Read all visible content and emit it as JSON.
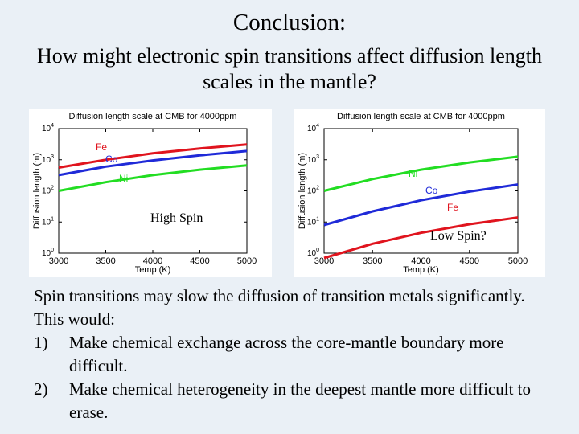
{
  "slide": {
    "title": "Conclusion:",
    "subtitle": "How might electronic spin transitions affect diffusion length scales in the mantle?",
    "overlay_left": "High Spin",
    "overlay_right": "Low Spin?",
    "intro": "Spin transitions may slow the diffusion of transition metals significantly.  This would:",
    "points": [
      {
        "num": "1)",
        "text": "Make chemical exchange across the core-mantle boundary more difficult."
      },
      {
        "num": "2)",
        "text": "Make chemical heterogeneity in the deepest mantle more difficult to erase."
      }
    ]
  },
  "chart_data": [
    {
      "type": "line",
      "title": "Diffusion length scale at CMB for 4000ppm",
      "xlabel": "Temp (K)",
      "ylabel": "Diffusion length (m)",
      "xlim": [
        3000,
        5000
      ],
      "ylim_log10": [
        0,
        4
      ],
      "yscale": "log",
      "xticks": [
        "3000",
        "3500",
        "4000",
        "4500",
        "5000"
      ],
      "yticks": [
        {
          "base": "10",
          "exp": "0"
        },
        {
          "base": "10",
          "exp": "1"
        },
        {
          "base": "10",
          "exp": "2"
        },
        {
          "base": "10",
          "exp": "3"
        },
        {
          "base": "10",
          "exp": "4"
        }
      ],
      "grid": false,
      "series": [
        {
          "name": "Fe",
          "color": "#e0141e",
          "x": [
            3000,
            3500,
            4000,
            4500,
            5000
          ],
          "y": [
            560,
            1000,
            1600,
            2300,
            3100
          ]
        },
        {
          "name": "Co",
          "color": "#1f2ad8",
          "x": [
            3000,
            3500,
            4000,
            4500,
            5000
          ],
          "y": [
            320,
            600,
            950,
            1380,
            1900
          ]
        },
        {
          "name": "Ni",
          "color": "#22dd22",
          "x": [
            3000,
            3500,
            4000,
            4500,
            5000
          ],
          "y": [
            100,
            190,
            320,
            480,
            660
          ]
        }
      ]
    },
    {
      "type": "line",
      "title": "Diffusion length scale at CMB for 4000ppm",
      "xlabel": "Temp (K)",
      "ylabel": "Diffusion length (m)",
      "xlim": [
        3000,
        5000
      ],
      "ylim_log10": [
        0,
        4
      ],
      "yscale": "log",
      "xticks": [
        "3000",
        "3500",
        "4000",
        "4500",
        "5000"
      ],
      "yticks": [
        {
          "base": "10",
          "exp": "0"
        },
        {
          "base": "10",
          "exp": "1"
        },
        {
          "base": "10",
          "exp": "2"
        },
        {
          "base": "10",
          "exp": "3"
        },
        {
          "base": "10",
          "exp": "4"
        }
      ],
      "grid": false,
      "series": [
        {
          "name": "Ni",
          "color": "#22dd22",
          "x": [
            3000,
            3500,
            4000,
            4500,
            5000
          ],
          "y": [
            100,
            240,
            480,
            820,
            1260
          ]
        },
        {
          "name": "Co",
          "color": "#1f2ad8",
          "x": [
            3000,
            3500,
            4000,
            4500,
            5000
          ],
          "y": [
            8,
            22,
            50,
            95,
            160
          ]
        },
        {
          "name": "Fe",
          "color": "#e0141e",
          "x": [
            3000,
            3500,
            4000,
            4500,
            5000
          ],
          "y": [
            0.7,
            2.0,
            4.5,
            8.5,
            14
          ]
        }
      ]
    }
  ]
}
